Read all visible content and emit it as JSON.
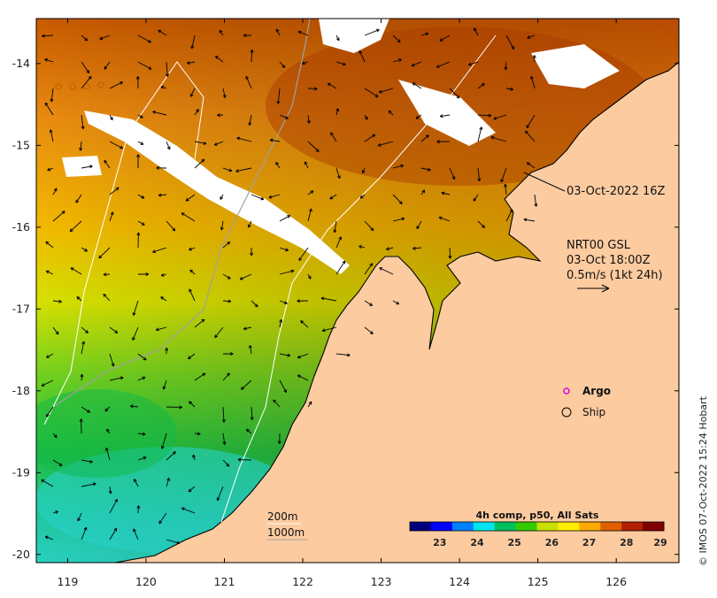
{
  "map": {
    "lon_ticks": [
      "119",
      "120",
      "121",
      "122",
      "123",
      "124",
      "125",
      "126"
    ],
    "lat_ticks": [
      "-14",
      "-15",
      "-16",
      "-17",
      "-18",
      "-19",
      "-20"
    ],
    "lon_values": [
      119,
      120,
      121,
      122,
      123,
      124,
      125,
      126
    ],
    "lat_values": [
      -14,
      -15,
      -16,
      -17,
      -18,
      -19,
      -20
    ],
    "extent": {
      "lon": [
        118.6,
        126.8
      ],
      "lat": [
        -20.1,
        -13.45
      ]
    },
    "sst_time_label": "03-Oct-2022 16Z",
    "current_model": {
      "line1": "NRT00 GSL",
      "line2": "03-Oct 18:00Z",
      "scale_label": "0.5m/s (1kt 24h)"
    },
    "legend": {
      "argo_label": "Argo",
      "ship_label": "Ship",
      "argo_color": "#e000e0"
    },
    "isobaths": {
      "label_200": "200m",
      "label_1000": "1000m"
    },
    "colorbar": {
      "title": "4h comp, p50, All Sats",
      "ticks": [
        "23",
        "24",
        "25",
        "26",
        "27",
        "28",
        "29"
      ],
      "range": [
        22.2,
        29
      ],
      "colors": [
        "#00007f",
        "#0000ff",
        "#007fff",
        "#00e5ee",
        "#00c060",
        "#33cc00",
        "#c8e000",
        "#ffee00",
        "#ffaa00",
        "#e06000",
        "#b02000",
        "#7f0000"
      ]
    },
    "credit": "© IMOS 07-Oct-2022 15:24 Hobart",
    "land_color": "#fccba0",
    "cloud_color": "#ffffff"
  }
}
